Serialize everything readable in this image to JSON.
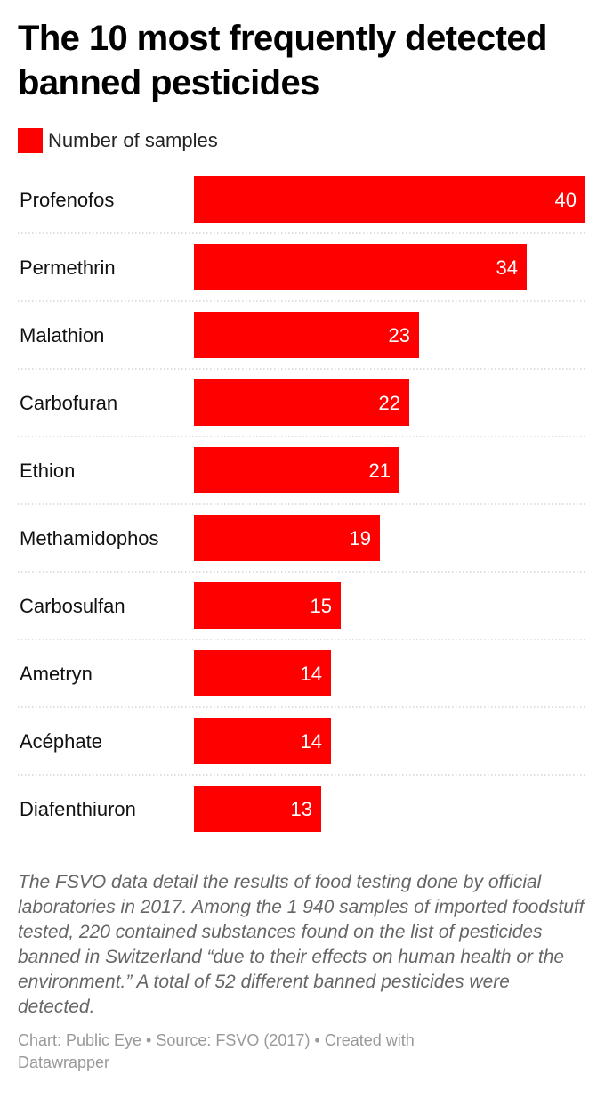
{
  "title": "The 10 most frequently detected banned pesticides",
  "legend": {
    "label": "Number of samples",
    "color": "#ff0000"
  },
  "chart_data": {
    "type": "bar",
    "orientation": "horizontal",
    "categories": [
      "Profenofos",
      "Permethrin",
      "Malathion",
      "Carbofuran",
      "Ethion",
      "Methamidophos",
      "Carbosulfan",
      "Ametryn",
      "Acéphate",
      "Diafenthiuron"
    ],
    "series": [
      {
        "name": "Number of samples",
        "values": [
          40,
          34,
          23,
          22,
          21,
          19,
          15,
          14,
          14,
          13
        ]
      }
    ],
    "xlim": [
      0,
      40
    ],
    "bar_color": "#ff0000",
    "value_labels": "inside-end",
    "grid": false,
    "separators": "dotted"
  },
  "note": "The FSVO data detail the results of food testing done by official laboratories in 2017. Among the 1 940 samples of imported foodstuff tested, 220 contained substances found on the list of pesticides banned in Switzerland “due to their effects on human health or the environment.” A total of 52 different banned pesticides were detected.",
  "credit": "Chart: Public Eye • Source: FSVO (2017) • Created with Datawrapper"
}
